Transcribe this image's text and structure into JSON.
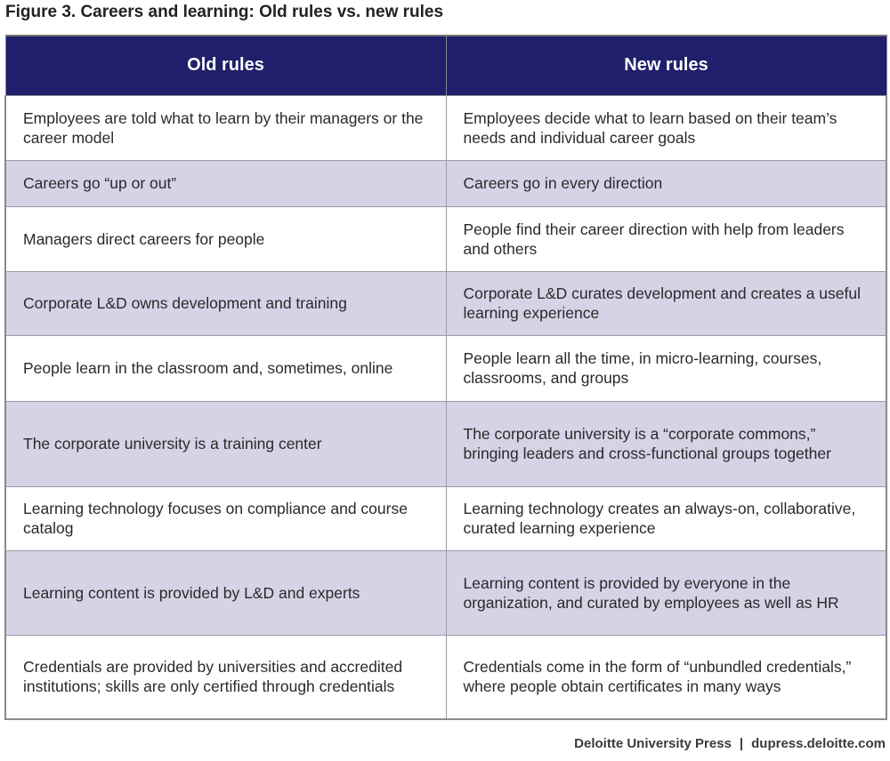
{
  "figure": {
    "title": "Figure 3. Careers and learning: Old rules vs. new rules"
  },
  "table": {
    "headers": {
      "old": "Old rules",
      "new": "New rules"
    },
    "rows": [
      {
        "old": "Employees are told what to learn by their managers or the career model",
        "new": "Employees decide what to learn based on their team’s needs and individual career goals"
      },
      {
        "old": "Careers go “up or out”",
        "new": "Careers go in every direction"
      },
      {
        "old": "Managers direct careers for people",
        "new": "People find their career direction with help from leaders and others"
      },
      {
        "old": "Corporate L&D owns development and training",
        "new": "Corporate L&D curates development and creates a useful learning experience"
      },
      {
        "old": "People learn in the classroom and, sometimes, online",
        "new": "People learn all the time, in micro-learning, courses, classrooms, and groups"
      },
      {
        "old": "The corporate university is a training center",
        "new": "The corporate university is a “corporate commons,” bringing leaders and cross-functional groups together"
      },
      {
        "old": "Learning technology focuses on compliance and course catalog",
        "new": "Learning technology creates an always-on, collaborative, curated learning experience"
      },
      {
        "old": "Learning content is provided by L&D and experts",
        "new": "Learning content is provided by everyone in the organization, and curated by employees as well as HR"
      },
      {
        "old": "Credentials are provided by universities and accredited institutions; skills are only certified through credentials",
        "new": "Credentials come in the form of “unbundled credentials,” where people obtain certificates in many ways"
      }
    ]
  },
  "footer": {
    "publisher": "Deloitte University Press",
    "separator": "|",
    "site": "dupress.deloitte.com"
  }
}
